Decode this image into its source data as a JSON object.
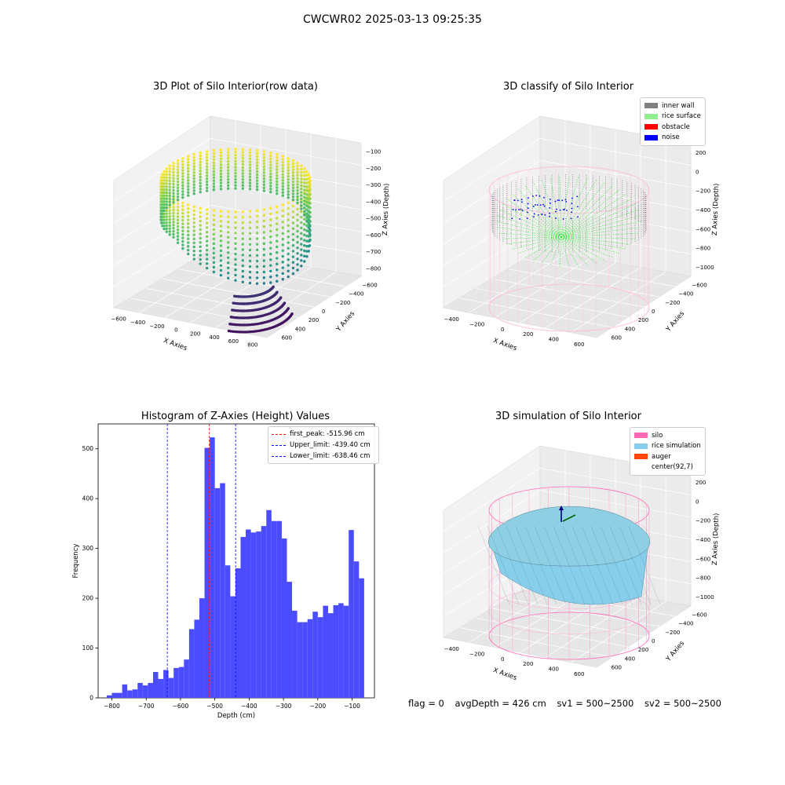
{
  "figure": {
    "title": "CWCWR02 2025-03-13 09:25:35"
  },
  "panels": {
    "raw": {
      "title": "3D Plot of Silo Interior(row data)"
    },
    "classify": {
      "title": "3D classify of Silo Interior"
    },
    "hist": {
      "title": "Histogram of Z-Axies (Height) Values"
    },
    "sim": {
      "title": "3D simulation of Silo Interior"
    }
  },
  "axis_labels": {
    "x": "X Axies",
    "y": "Y Axies",
    "z": "Z Axies (Depth)"
  },
  "status_line": {
    "flag": "flag = 0",
    "avg_depth": "avgDepth = 426 cm",
    "sv1": "sv1 = 500~2500",
    "sv2": "sv2 = 500~2500"
  },
  "colors": {
    "inner_wall": "#808080",
    "rice_surface": "#90ee90",
    "obstacle": "#ff0000",
    "noise": "#0000ff",
    "silo": "#ff69b4",
    "rice_simulation": "#87ceeb",
    "auger": "#ff4500",
    "hist_bar": "#4c4cff"
  },
  "chart_data": [
    {
      "type": "scatter",
      "subtype": "3d",
      "title": "3D Plot of Silo Interior(row data)",
      "xlabel": "X Axies",
      "ylabel": "Y Axies",
      "zlabel": "Z Axies (Depth)",
      "x_ticks": [
        "−600",
        "−400",
        "−200",
        "0",
        "200",
        "400",
        "600",
        "800"
      ],
      "y_ticks": [
        "−600",
        "−400",
        "−200",
        "0",
        "200",
        "400",
        "600"
      ],
      "z_ticks": [
        "−100",
        "−200",
        "−300",
        "−400",
        "−500",
        "−600",
        "−700",
        "−800"
      ],
      "colormap": "viridis"
    },
    {
      "type": "scatter",
      "subtype": "3d",
      "title": "3D classify of Silo Interior",
      "xlabel": "X Axies",
      "ylabel": "Y Axies",
      "zlabel": "Z Axies (Depth)",
      "x_ticks": [
        "−400",
        "−200",
        "0",
        "200",
        "400",
        "600"
      ],
      "y_ticks": [
        "−600",
        "−400",
        "−200",
        "0",
        "200",
        "400",
        "600"
      ],
      "z_ticks": [
        "200",
        "0",
        "−200",
        "−400",
        "−600",
        "−800",
        "−1000"
      ],
      "legend": [
        "inner wall",
        "rice surface",
        "obstacle",
        "noise"
      ],
      "legend_position": "top-right"
    },
    {
      "type": "bar",
      "subtype": "histogram",
      "title": "Histogram of Z-Axies (Height) Values",
      "xlabel": "Depth (cm)",
      "ylabel": "Frequency",
      "xlim": [
        -840,
        -35
      ],
      "ylim": [
        0,
        550
      ],
      "x_ticks": [
        -800,
        -700,
        -600,
        -500,
        -400,
        -300,
        -200,
        -100
      ],
      "x_tick_labels": [
        "−800",
        "−700",
        "−600",
        "−500",
        "−400",
        "−300",
        "−200",
        "−100"
      ],
      "y_ticks": [
        0,
        100,
        200,
        300,
        400,
        500
      ],
      "bin_width": 15,
      "bins_start": -815,
      "values": [
        5,
        10,
        10,
        27,
        15,
        17,
        30,
        25,
        30,
        52,
        38,
        56,
        40,
        60,
        62,
        77,
        138,
        157,
        200,
        502,
        523,
        421,
        431,
        266,
        204,
        260,
        323,
        338,
        332,
        334,
        345,
        377,
        355,
        355,
        320,
        233,
        175,
        152,
        152,
        158,
        173,
        162,
        185,
        170,
        186,
        190,
        185,
        337,
        274,
        240
      ],
      "vlines": [
        {
          "label": "first_peak: -515.96 cm",
          "x": -515.96,
          "color": "#ff0000"
        },
        {
          "label": "Upper_limit: -439.40 cm",
          "x": -439.4,
          "color": "#0000ff"
        },
        {
          "label": "Lower_limit: -638.46 cm",
          "x": -638.46,
          "color": "#0000ff"
        }
      ],
      "legend_position": "top-right"
    },
    {
      "type": "surface",
      "subtype": "3d",
      "title": "3D simulation of Silo Interior",
      "xlabel": "X Axies",
      "ylabel": "Y Axies",
      "zlabel": "Z Axies (Depth)",
      "x_ticks": [
        "−400",
        "−200",
        "0",
        "200",
        "400",
        "600"
      ],
      "y_ticks": [
        "−600",
        "−400",
        "−200",
        "0",
        "200",
        "400",
        "600"
      ],
      "z_ticks": [
        "200",
        "0",
        "−200",
        "−400",
        "−600",
        "−800",
        "−1000"
      ],
      "legend": [
        "silo",
        "rice simulation",
        "auger",
        "center(92,7)"
      ],
      "legend_position": "top-right"
    }
  ]
}
